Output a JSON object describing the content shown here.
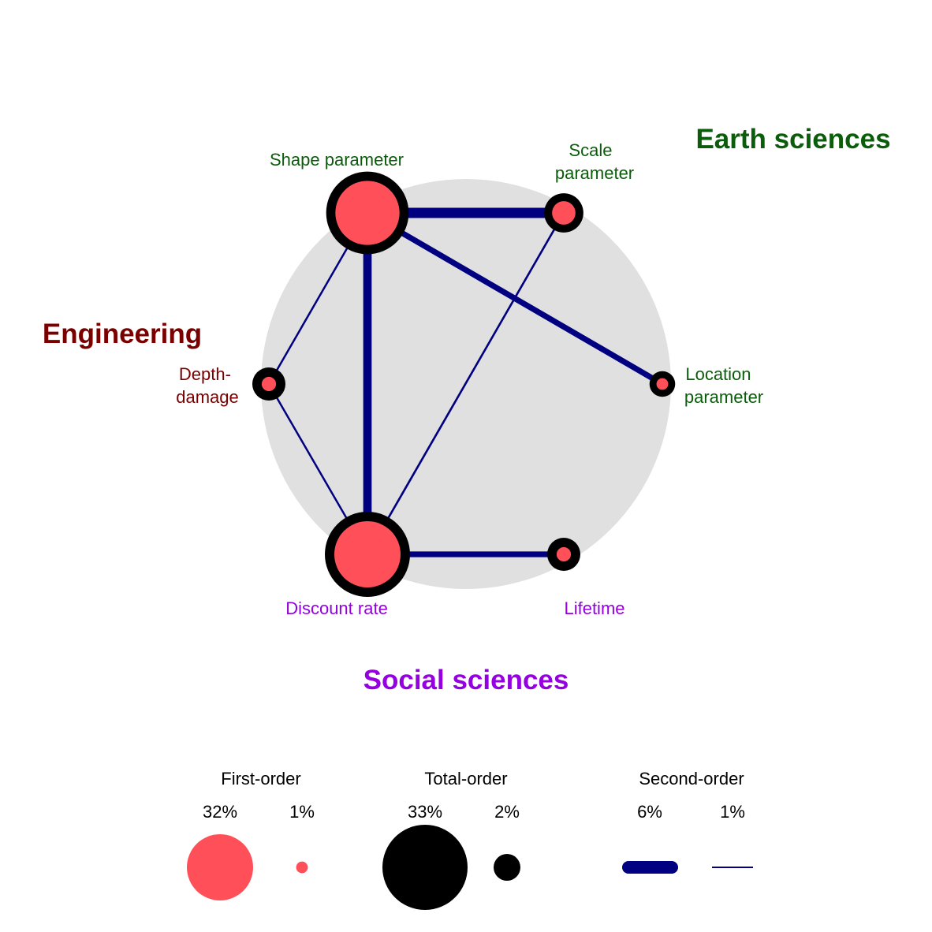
{
  "colors": {
    "background_circle": "#e0e0e0",
    "first_order_fill": "#ff5059",
    "total_order_ring": "#000000",
    "second_order_edge": "#000080",
    "earth_sciences": "#0b5c0b",
    "engineering": "#7a0000",
    "social_sciences": "#9400e0"
  },
  "groups": {
    "earth_sciences": "Earth sciences",
    "engineering": "Engineering",
    "social_sciences": "Social sciences"
  },
  "nodes": [
    {
      "id": "shape",
      "label_lines": [
        "Shape parameter"
      ],
      "group": "earth_sciences",
      "first_order": 0.3,
      "total_order": 0.31
    },
    {
      "id": "scale",
      "label_lines": [
        "Scale",
        "parameter"
      ],
      "group": "earth_sciences",
      "first_order": 0.04,
      "total_order": 0.07
    },
    {
      "id": "location",
      "label_lines": [
        "Location",
        "parameter"
      ],
      "group": "earth_sciences",
      "first_order": 0.01,
      "total_order": 0.03
    },
    {
      "id": "lifetime",
      "label_lines": [
        "Lifetime"
      ],
      "group": "social_sciences",
      "first_order": 0.015,
      "total_order": 0.05
    },
    {
      "id": "discount",
      "label_lines": [
        "Discount rate"
      ],
      "group": "social_sciences",
      "first_order": 0.32,
      "total_order": 0.33
    },
    {
      "id": "depth",
      "label_lines": [
        "Depth-",
        "damage"
      ],
      "group": "engineering",
      "first_order": 0.015,
      "total_order": 0.05
    }
  ],
  "edges": [
    {
      "source": "shape",
      "target": "scale",
      "second_order": 0.06
    },
    {
      "source": "shape",
      "target": "discount",
      "second_order": 0.05
    },
    {
      "source": "shape",
      "target": "location",
      "second_order": 0.035
    },
    {
      "source": "discount",
      "target": "lifetime",
      "second_order": 0.035
    },
    {
      "source": "discount",
      "target": "scale",
      "second_order": 0.015
    },
    {
      "source": "shape",
      "target": "depth",
      "second_order": 0.01
    },
    {
      "source": "discount",
      "target": "depth",
      "second_order": 0.01
    }
  ],
  "legend": {
    "first_order": {
      "title": "First-order",
      "items": [
        {
          "label": "32%",
          "value": 0.32
        },
        {
          "label": "1%",
          "value": 0.01
        }
      ]
    },
    "total_order": {
      "title": "Total-order",
      "items": [
        {
          "label": "33%",
          "value": 0.33
        },
        {
          "label": "2%",
          "value": 0.02
        }
      ]
    },
    "second_order": {
      "title": "Second-order",
      "items": [
        {
          "label": "6%",
          "value": 0.06
        },
        {
          "label": "1%",
          "value": 0.01
        }
      ]
    }
  }
}
